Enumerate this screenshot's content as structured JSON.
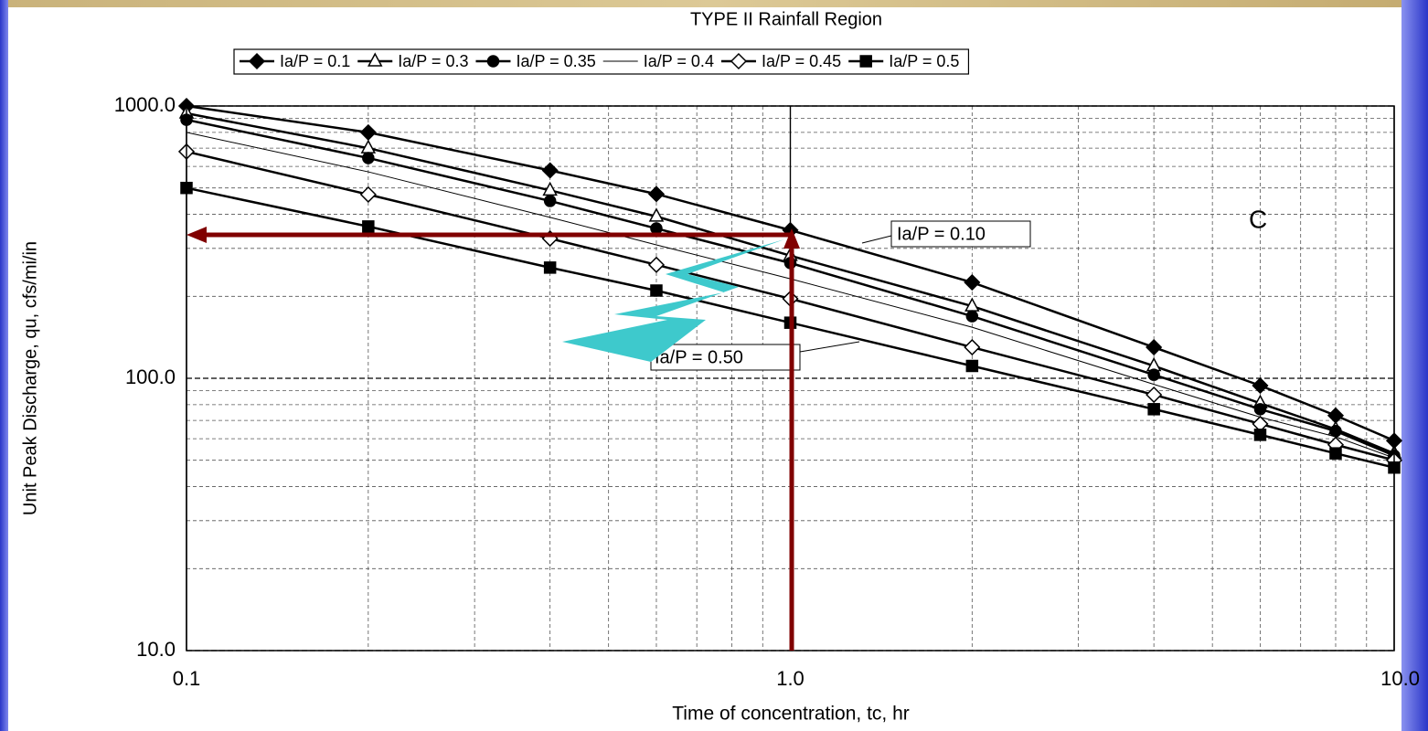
{
  "chart_data": {
    "type": "line",
    "title": "TYPE II Rainfall Region",
    "x_label": "Time of concentration, tc, hr",
    "y_label": "Unit Peak Discharge, qu, cfs/mi/in",
    "xscale": "log",
    "yscale": "log",
    "xlim": [
      0.1,
      10
    ],
    "ylim": [
      10,
      1000
    ],
    "xticks": [
      0.1,
      {
        "value": 1,
        "label": "1.0"
      },
      {
        "value": 10,
        "label": "10.0"
      }
    ],
    "yticks": [
      {
        "value": 10,
        "label": "10.0"
      },
      {
        "value": 100,
        "label": "100.0"
      },
      {
        "value": 1000,
        "label": "1000.0"
      }
    ],
    "grid": true,
    "minor_grid": true,
    "legend": "top",
    "x": [
      0.1,
      0.2,
      0.4,
      0.6,
      1,
      2,
      4,
      6,
      8,
      10
    ],
    "series": [
      {
        "name": "Ia/P = 0.1",
        "color": "#000000",
        "marker": "diamond",
        "filled": true,
        "line_width": 2.5,
        "values": [
          1000,
          800,
          580,
          475,
          350,
          225,
          130,
          94,
          73,
          59
        ]
      },
      {
        "name": "Ia/P = 0.3",
        "color": "#000000",
        "marker": "triangle",
        "filled": false,
        "line_width": 2.5,
        "values": [
          940,
          700,
          490,
          393,
          282,
          184,
          111,
          81,
          65,
          53
        ]
      },
      {
        "name": "Ia/P = 0.35",
        "color": "#000000",
        "marker": "circle",
        "filled": true,
        "line_width": 2.5,
        "values": [
          890,
          644,
          448,
          355,
          265,
          169,
          103,
          77,
          64,
          52
        ]
      },
      {
        "name": "Ia/P = 0.4",
        "color": "#000000",
        "marker": "none",
        "filled": false,
        "line_width": 1,
        "values": [
          800,
          573,
          390,
          309,
          232,
          154,
          95,
          72,
          61,
          51
        ]
      },
      {
        "name": "Ia/P = 0.45",
        "color": "#000000",
        "marker": "diamond",
        "filled": false,
        "line_width": 2.5,
        "values": [
          680,
          473,
          326,
          261,
          196,
          130,
          87,
          68,
          57,
          50
        ]
      },
      {
        "name": "Ia/P = 0.5",
        "color": "#000000",
        "marker": "square",
        "filled": true,
        "line_width": 2.5,
        "values": [
          500,
          361,
          255,
          210,
          160,
          111,
          77,
          62,
          53,
          47
        ]
      }
    ],
    "annotations": [
      {
        "text": "Ia/P = 0.10"
      },
      {
        "text": "Ia/P = 0.50"
      },
      {
        "text": "C"
      }
    ]
  }
}
